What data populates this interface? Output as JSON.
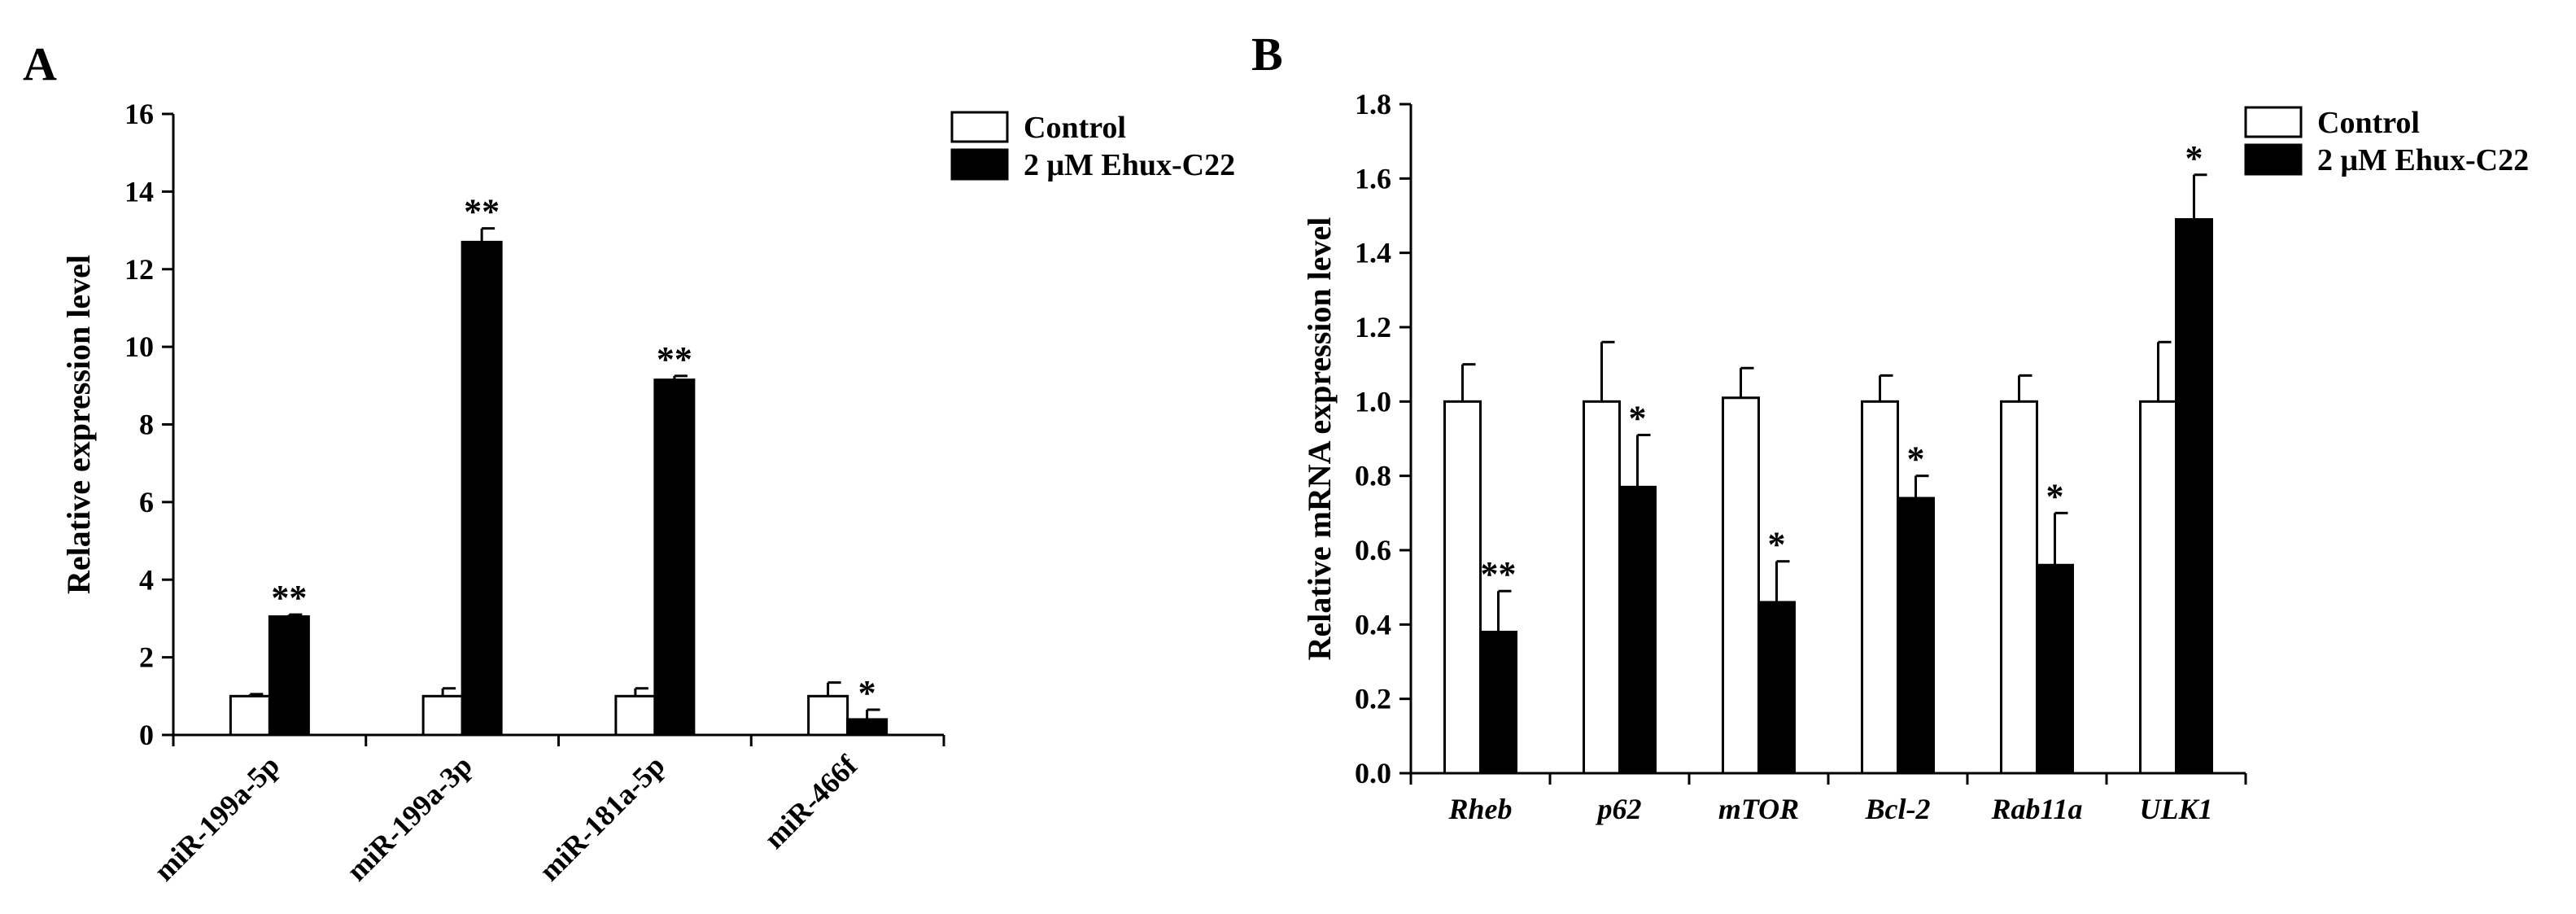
{
  "chart_data": [
    {
      "panel": "A",
      "type": "bar",
      "ylabel": "Relative expression level",
      "ylim": [
        0,
        16
      ],
      "yticks": [
        "0",
        "2",
        "4",
        "6",
        "8",
        "10",
        "12",
        "14",
        "16"
      ],
      "categories": [
        "miR-199a-5p",
        "miR-199a-3p",
        "miR-181a-5p",
        "miR-466f"
      ],
      "series": [
        {
          "name": "Control",
          "color": "#ffffff",
          "values": [
            1.0,
            1.0,
            1.0,
            1.0
          ],
          "errors": [
            0.05,
            0.2,
            0.2,
            0.35
          ]
        },
        {
          "name": "2 μM Ehux-C22",
          "color": "#000000",
          "values": [
            3.05,
            12.7,
            9.15,
            0.4
          ],
          "errors": [
            0.05,
            0.35,
            0.1,
            0.25
          ]
        }
      ],
      "significance": [
        "**",
        "**",
        "**",
        "*"
      ],
      "legend": "top-right"
    },
    {
      "panel": "B",
      "type": "bar",
      "ylabel": "Relative mRNA expression level",
      "ylim": [
        0,
        1.8
      ],
      "yticks": [
        "0.0",
        "0.2",
        "0.4",
        "0.6",
        "0.8",
        "1.0",
        "1.2",
        "1.4",
        "1.6",
        "1.8"
      ],
      "categories": [
        "Rheb",
        "p62",
        "mTOR",
        "Bcl-2",
        "Rab11a",
        "ULK1"
      ],
      "series": [
        {
          "name": "Control",
          "color": "#ffffff",
          "values": [
            1.0,
            1.0,
            1.01,
            1.0,
            1.0,
            1.0
          ],
          "errors": [
            0.1,
            0.16,
            0.08,
            0.07,
            0.07,
            0.16
          ]
        },
        {
          "name": "2 μM Ehux-C22",
          "color": "#000000",
          "values": [
            0.38,
            0.77,
            0.46,
            0.74,
            0.56,
            1.49
          ],
          "errors": [
            0.11,
            0.14,
            0.11,
            0.06,
            0.14,
            0.12
          ]
        }
      ],
      "significance": [
        "**",
        "*",
        "*",
        "*",
        "*",
        "*"
      ],
      "legend": "top-right"
    }
  ]
}
